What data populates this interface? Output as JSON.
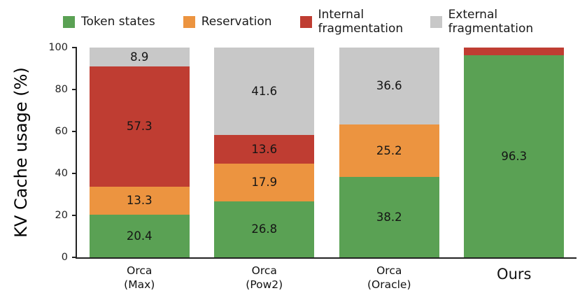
{
  "chart_data": {
    "type": "bar",
    "stacked": true,
    "title": "",
    "ylabel": "KV Cache usage (%)",
    "xlabel": "",
    "ylim": [
      0,
      100
    ],
    "yticks": [
      0,
      20,
      40,
      60,
      80,
      100
    ],
    "grid": false,
    "legend_position": "top",
    "value_labels_min": 5,
    "categories": [
      {
        "label": "Orca\n(Max)",
        "large": false
      },
      {
        "label": "Orca\n(Pow2)",
        "large": false
      },
      {
        "label": "Orca\n(Oracle)",
        "large": false
      },
      {
        "label": "Ours",
        "large": true
      }
    ],
    "series": [
      {
        "name": "Token states",
        "color": "#5aa154",
        "values": [
          20.4,
          26.8,
          38.2,
          96.3
        ]
      },
      {
        "name": "Reservation",
        "color": "#ec9440",
        "values": [
          13.3,
          17.9,
          25.2,
          0
        ]
      },
      {
        "name": "Internal fragmentation",
        "color": "#bf3d32",
        "values": [
          57.3,
          13.6,
          0,
          3.7
        ]
      },
      {
        "name": "External fragmentation",
        "color": "#c8c8c8",
        "values": [
          8.9,
          41.6,
          36.6,
          0
        ]
      }
    ]
  }
}
